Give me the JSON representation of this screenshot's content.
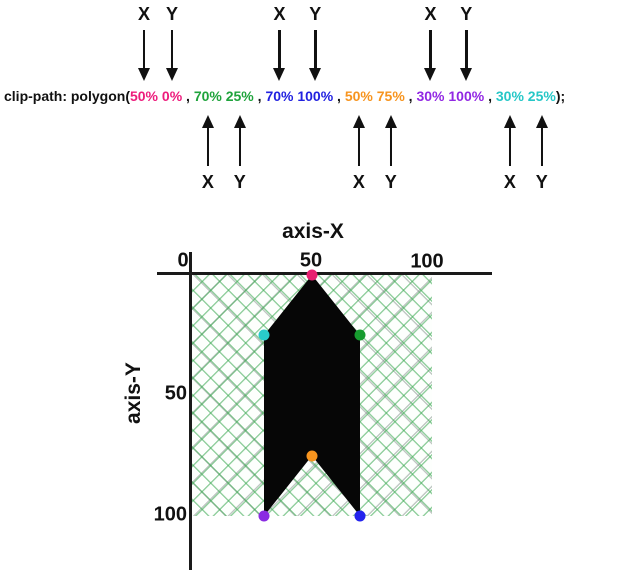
{
  "code_line": {
    "prefix": "clip-path: polygon(",
    "suffix": ");",
    "separator": " , ",
    "pair_space": " ",
    "arrow_label_x": "X",
    "arrow_label_y": "Y",
    "pairs": [
      {
        "x": "50%",
        "y": "0%",
        "color": "#ED1C7C",
        "arrow_side": "top"
      },
      {
        "x": "70%",
        "y": "25%",
        "color": "#1FA33C",
        "arrow_side": "bottom"
      },
      {
        "x": "70%",
        "y": "100%",
        "color": "#2121E0",
        "arrow_side": "top"
      },
      {
        "x": "50%",
        "y": "75%",
        "color": "#F7941E",
        "arrow_side": "bottom"
      },
      {
        "x": "30%",
        "y": "100%",
        "color": "#9127E3",
        "arrow_side": "top"
      },
      {
        "x": "30%",
        "y": "25%",
        "color": "#26C7C7",
        "arrow_side": "bottom"
      }
    ]
  },
  "chart": {
    "title_x": "axis-X",
    "title_y": "axis-Y",
    "x_ticks": [
      "0",
      "50",
      "100"
    ],
    "y_ticks": [
      "50",
      "100"
    ],
    "clip_path_css": "polygon(50% 0%, 70% 25%, 70% 100%, 50% 75%, 30% 100%, 30% 25%)",
    "shape_color": "#060606",
    "hatch_line_color": "#3EAA54",
    "points": [
      {
        "left": "50%",
        "top": "0%",
        "color": "#E82070"
      },
      {
        "left": "70%",
        "top": "25%",
        "color": "#169B2E"
      },
      {
        "left": "70%",
        "top": "100%",
        "color": "#2424EE"
      },
      {
        "left": "50%",
        "top": "75%",
        "color": "#F7941E"
      },
      {
        "left": "30%",
        "top": "100%",
        "color": "#8A2BE2"
      },
      {
        "left": "30%",
        "top": "25%",
        "color": "#29CBCB"
      }
    ]
  }
}
